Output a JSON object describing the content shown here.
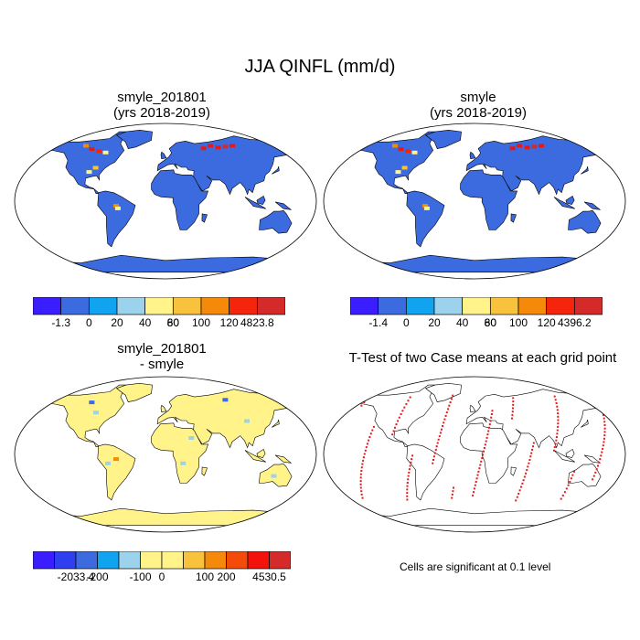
{
  "figure": {
    "title": "JJA QINFL (mm/d)"
  },
  "panels": [
    {
      "id": "case",
      "title_line1": "smyle_201801",
      "title_line2": "(yrs 2018-2019)"
    },
    {
      "id": "control",
      "title_line1": "smyle",
      "title_line2": "(yrs 2018-2019)"
    },
    {
      "id": "difference",
      "title_line1": "smyle_201801",
      "title_line2": "- smyle"
    },
    {
      "id": "ttest",
      "title_line1": "T-Test of two Case means at each grid point",
      "title_line2": ""
    }
  ],
  "colorbars": {
    "case": {
      "labels": [
        "-1.3",
        "0",
        "20",
        "40",
        "60",
        "80",
        "100",
        "120",
        "4823.8"
      ],
      "colors": [
        "#3a1eff",
        "#3c6be0",
        "#0fa3f0",
        "#9dd2ec",
        "#fff38a",
        "#f8c23c",
        "#f58a0a",
        "#f4250c",
        "#d42a2a"
      ]
    },
    "control": {
      "labels": [
        "-1.4",
        "0",
        "20",
        "40",
        "60",
        "80",
        "100",
        "120",
        "4396.2"
      ],
      "colors": [
        "#3a1eff",
        "#3c6be0",
        "#0fa3f0",
        "#9dd2ec",
        "#fff38a",
        "#f8c23c",
        "#f58a0a",
        "#f4250c",
        "#d42a2a"
      ]
    },
    "difference": {
      "labels": [
        "-2033.4",
        "-200",
        "-100",
        "0",
        "100",
        "200",
        "4530.5"
      ],
      "colors": [
        "#3a1eff",
        "#2f3ff0",
        "#3c6be0",
        "#0fa3f0",
        "#9dd2ec",
        "#fff38a",
        "#fff38a",
        "#f8c23c",
        "#f58a0a",
        "#f44a0a",
        "#f4130c",
        "#d42a2a"
      ]
    }
  },
  "significance_note": "Cells are significant at 0.1 level",
  "map_colors": {
    "ocean": "#ffffff",
    "land_case": "#3c6be0",
    "land_diff": "#fff38a",
    "highlight_red": "#e31a1c",
    "coast": "#000000"
  }
}
